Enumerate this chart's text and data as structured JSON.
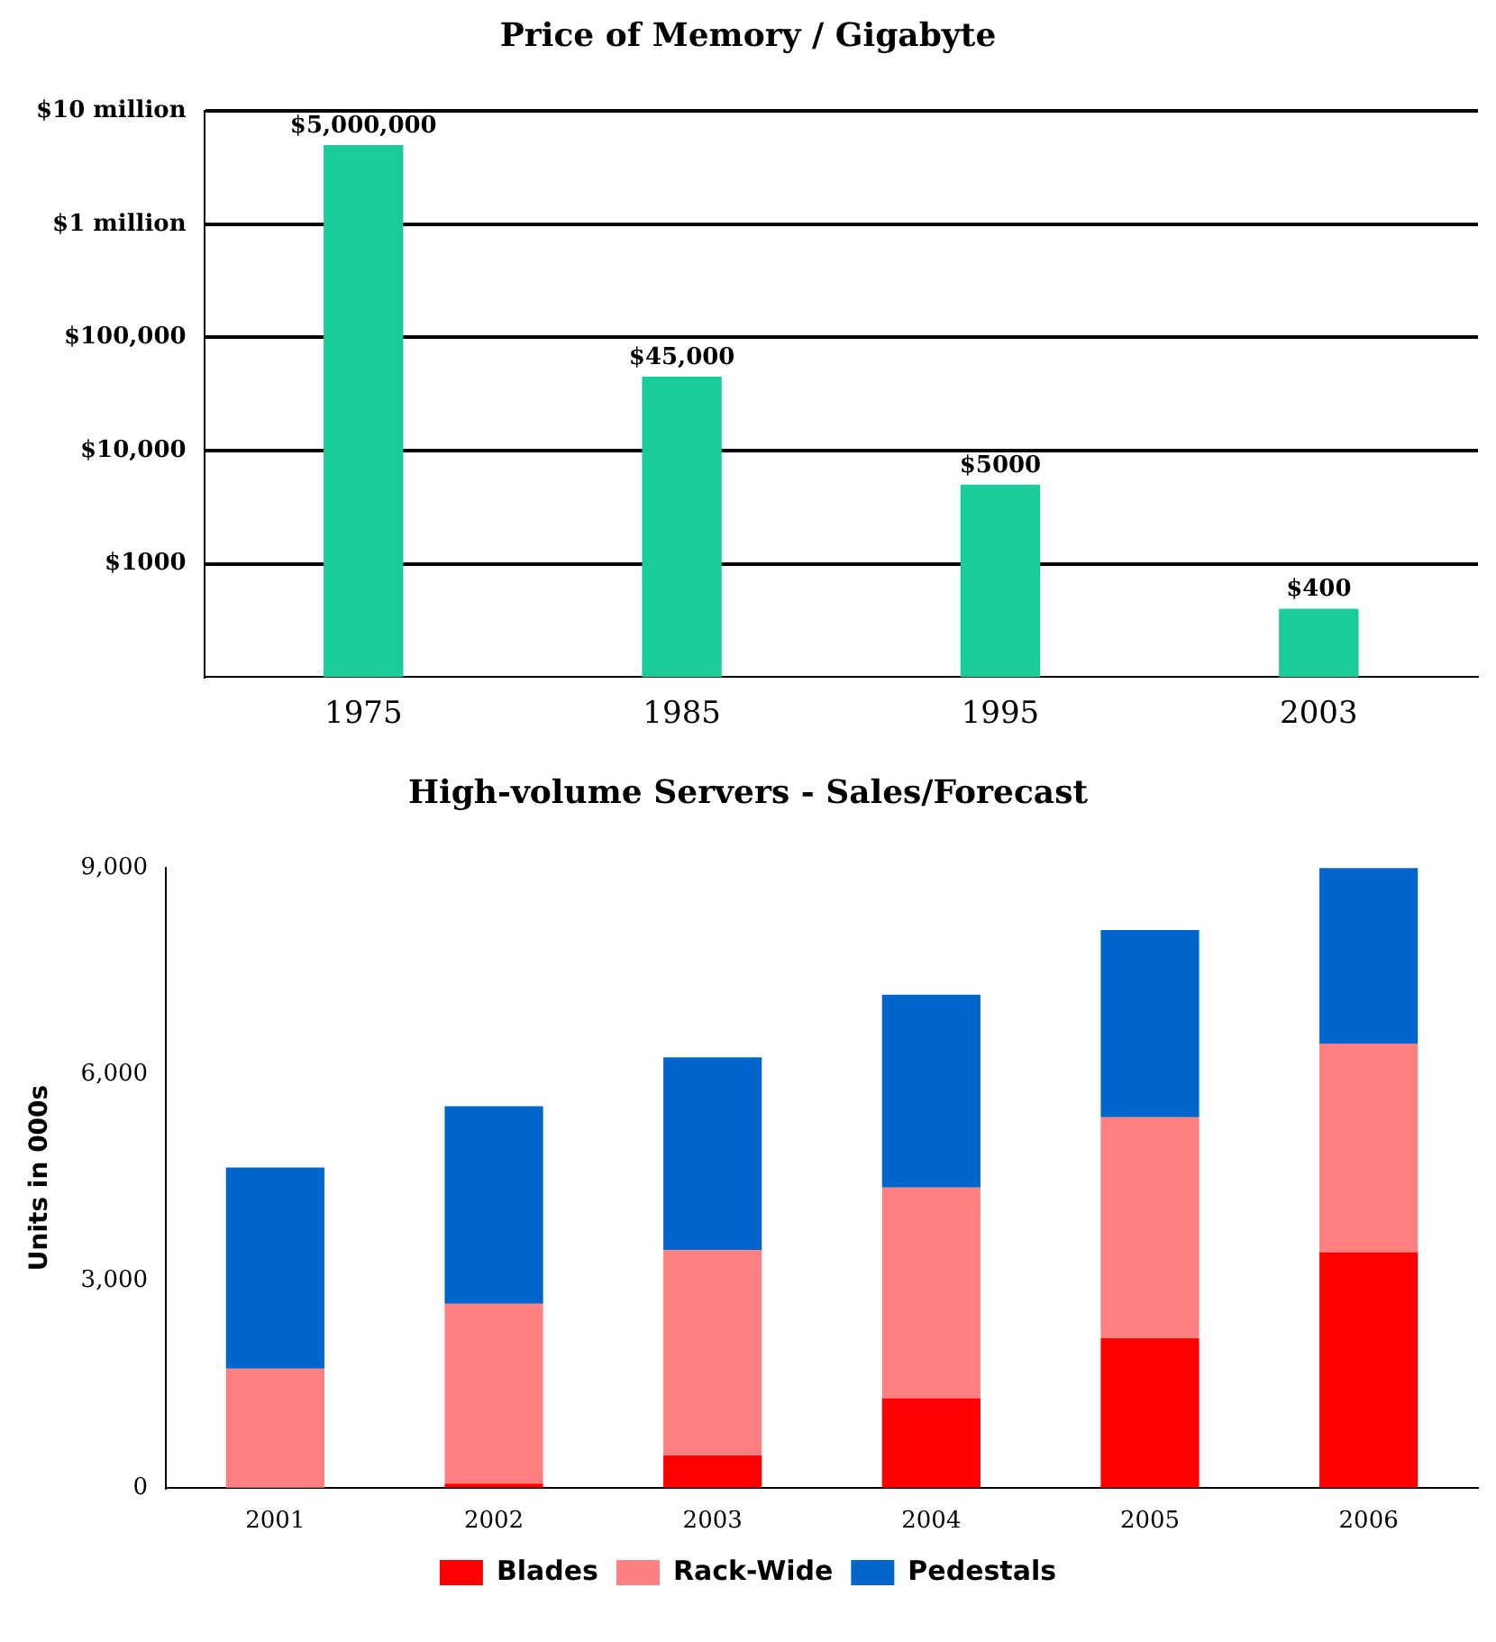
{
  "chart_data": [
    {
      "type": "bar",
      "title": "Price of Memory / Gigabyte",
      "categories": [
        "1975",
        "1985",
        "1995",
        "2003"
      ],
      "values": [
        5000000,
        45000,
        5000,
        400
      ],
      "color": "#19cc99",
      "value_labels": [
        "$5,000,000",
        "$45,000",
        "$5000",
        "$400"
      ],
      "log": true,
      "ylim": [
        100,
        10000000
      ],
      "yticks": [
        {
          "value": 1000,
          "label": "$1000"
        },
        {
          "value": 10000,
          "label": "$10,000"
        },
        {
          "value": 100000,
          "label": "$100,000"
        },
        {
          "value": 1000000,
          "label": "$1 million"
        },
        {
          "value": 10000000,
          "label": "$10 million"
        }
      ],
      "grid": "y"
    },
    {
      "type": "bar",
      "title": "High-volume Servers - Sales/Forecast",
      "ylabel": "Units in 000s",
      "categories": [
        "2001",
        "2002",
        "2003",
        "2004",
        "2005",
        "2006"
      ],
      "stacked": true,
      "legend": "bottom",
      "ylim": [
        0,
        9000
      ],
      "yticks": [
        0,
        {
          "value": 3000,
          "label": "3,000"
        },
        {
          "value": 6000,
          "label": "6,000"
        },
        {
          "value": 9000,
          "label": "9,000"
        }
      ],
      "series": [
        {
          "name": "Blades",
          "color": "#ff0000",
          "values": [
            0,
            60,
            470,
            1300,
            2170,
            3420
          ]
        },
        {
          "name": "Rack-Wide",
          "color": "#ff8080",
          "values": [
            1730,
            2610,
            2980,
            3060,
            3210,
            3030
          ]
        },
        {
          "name": "Pedestals",
          "color": "#0066cc",
          "values": [
            2920,
            2870,
            2800,
            2800,
            2720,
            2550
          ]
        }
      ]
    }
  ]
}
